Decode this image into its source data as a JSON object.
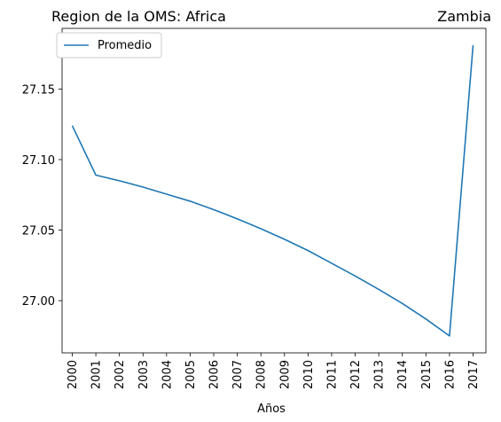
{
  "chart_data": {
    "type": "line",
    "title_left": "Region de la OMS: Africa",
    "title_right": "Zambia",
    "xlabel": "Años",
    "ylabel": "",
    "categories": [
      "2000",
      "2001",
      "2002",
      "2003",
      "2004",
      "2005",
      "2006",
      "2007",
      "2008",
      "2009",
      "2010",
      "2011",
      "2012",
      "2013",
      "2014",
      "2015",
      "2016",
      "2017"
    ],
    "series": [
      {
        "name": "Promedio",
        "color": "#1f77b4",
        "values": [
          27.124,
          27.089,
          27.085,
          27.0805,
          27.0755,
          27.0705,
          27.0645,
          27.058,
          27.051,
          27.0435,
          27.0355,
          27.0265,
          27.0175,
          27.008,
          26.998,
          26.987,
          26.975,
          27.181
        ]
      }
    ],
    "ylim": [
      26.963,
      27.193
    ],
    "yticks": [
      "27.00",
      "27.05",
      "27.10",
      "27.15"
    ],
    "ytick_values": [
      27.0,
      27.05,
      27.1,
      27.15
    ],
    "legend_position": "upper-left",
    "grid": false
  }
}
